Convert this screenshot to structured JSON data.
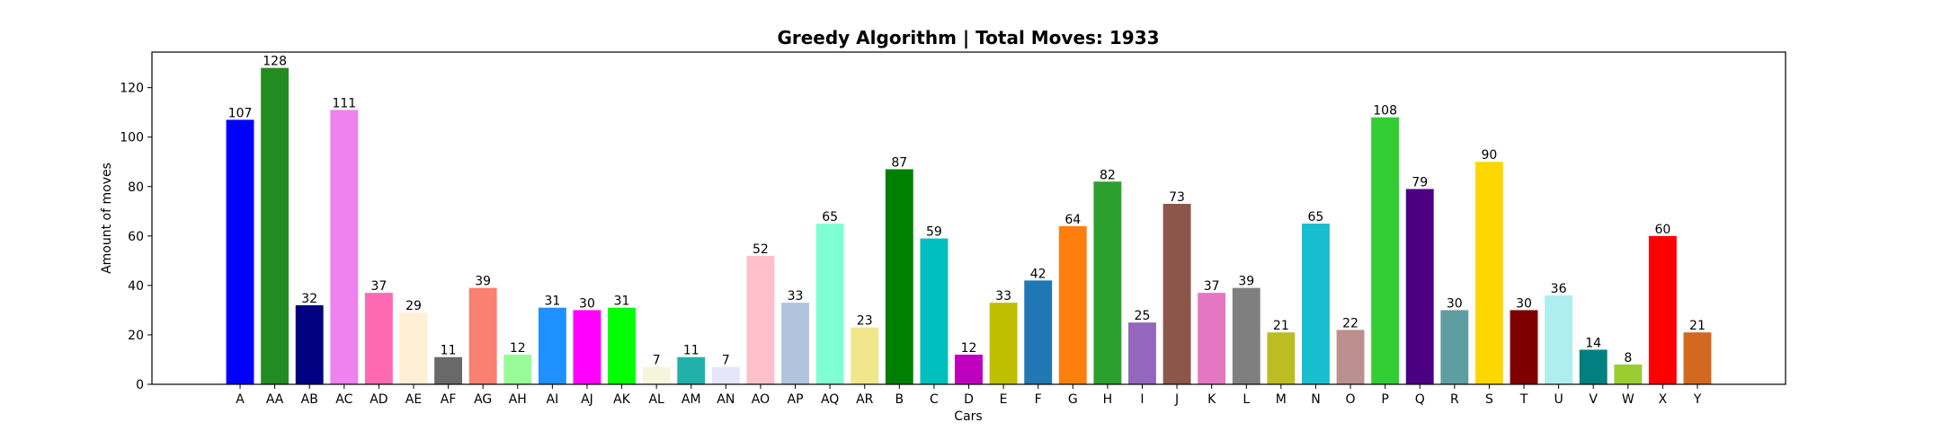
{
  "chart_data": {
    "type": "bar",
    "title": "Greedy Algorithm | Total Moves: 1933",
    "xlabel": "Cars",
    "ylabel": "Amount of moves",
    "ylim": [
      0,
      134.4
    ],
    "yticks": [
      0,
      20,
      40,
      60,
      80,
      100,
      120
    ],
    "grid": false,
    "categories": [
      "A",
      "AA",
      "AB",
      "AC",
      "AD",
      "AE",
      "AF",
      "AG",
      "AH",
      "AI",
      "AJ",
      "AK",
      "AL",
      "AM",
      "AN",
      "AO",
      "AP",
      "AQ",
      "AR",
      "B",
      "C",
      "D",
      "E",
      "F",
      "G",
      "H",
      "I",
      "J",
      "K",
      "L",
      "M",
      "N",
      "O",
      "P",
      "Q",
      "R",
      "S",
      "T",
      "U",
      "V",
      "W",
      "X",
      "Y"
    ],
    "values": [
      107,
      128,
      32,
      111,
      37,
      29,
      11,
      39,
      12,
      31,
      30,
      31,
      7,
      11,
      7,
      52,
      33,
      65,
      23,
      87,
      59,
      12,
      33,
      42,
      64,
      82,
      25,
      73,
      37,
      39,
      21,
      65,
      22,
      108,
      79,
      30,
      90,
      30,
      36,
      14,
      8,
      60,
      21
    ],
    "colors": [
      "#0000ff",
      "#228b22",
      "#000080",
      "#ee82ee",
      "#ff69b4",
      "#ffefd5",
      "#696969",
      "#fa8072",
      "#98fb98",
      "#1e90ff",
      "#ff00ff",
      "#00ff00",
      "#f5f5dc",
      "#20b2aa",
      "#e6e6fa",
      "#ffc0cb",
      "#b0c4de",
      "#7fffd4",
      "#f0e68c",
      "#008000",
      "#00bfbf",
      "#bf00bf",
      "#bfbf00",
      "#1f77b4",
      "#ff7f0e",
      "#2ca02c",
      "#9467bd",
      "#8c564b",
      "#e377c2",
      "#7f7f7f",
      "#bcbd22",
      "#17becf",
      "#bc8f8f",
      "#32cd32",
      "#4b0082",
      "#5f9ea0",
      "#ffd700",
      "#800000",
      "#afeeee",
      "#008080",
      "#9acd32",
      "#ff0000",
      "#d2691e"
    ]
  }
}
